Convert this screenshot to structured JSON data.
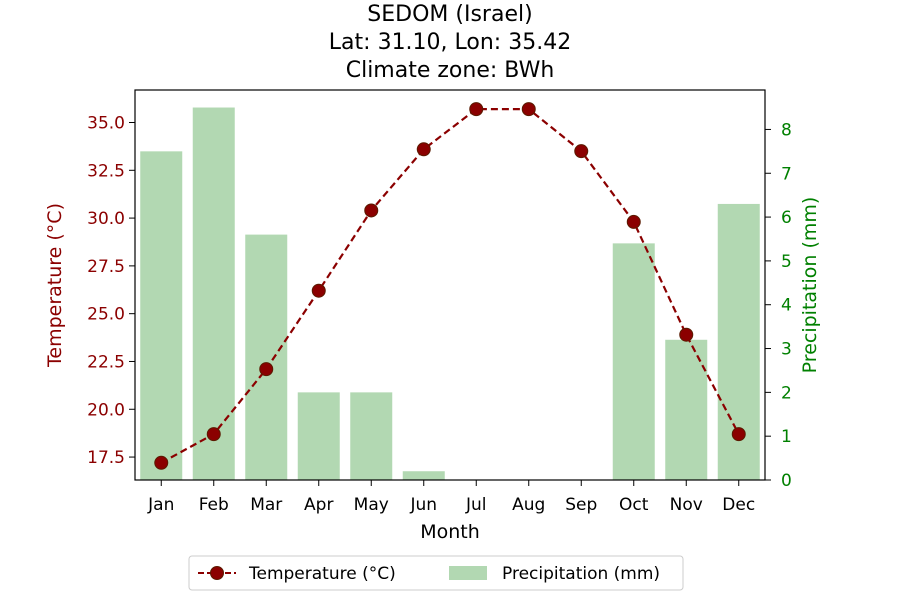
{
  "chart_data": {
    "type": "bar+line",
    "title_lines": [
      "SEDOM (Israel)",
      "Lat: 31.10, Lon: 35.42",
      "Climate zone: BWh"
    ],
    "xlabel": "Month",
    "ylabel_left": "Temperature (°C)",
    "ylabel_right": "Precipitation (mm)",
    "categories": [
      "Jan",
      "Feb",
      "Mar",
      "Apr",
      "May",
      "Jun",
      "Jul",
      "Aug",
      "Sep",
      "Oct",
      "Nov",
      "Dec"
    ],
    "y_left_lim": [
      16.3,
      36.7
    ],
    "y_left_ticks": [
      "17.5",
      "20.0",
      "22.5",
      "25.0",
      "27.5",
      "30.0",
      "32.5",
      "35.0"
    ],
    "y_right_lim": [
      0,
      8.9
    ],
    "y_right_ticks": [
      "0",
      "1",
      "2",
      "3",
      "4",
      "5",
      "6",
      "7",
      "8"
    ],
    "series": [
      {
        "name": "Temperature (°C)",
        "type": "line",
        "axis": "left",
        "values": [
          17.2,
          18.7,
          22.1,
          26.2,
          30.4,
          33.6,
          35.7,
          35.7,
          33.5,
          29.8,
          23.9,
          18.7
        ]
      },
      {
        "name": "Precipitation (mm)",
        "type": "bar",
        "axis": "right",
        "values": [
          7.5,
          8.5,
          5.6,
          2.0,
          2.0,
          0.2,
          0.0,
          0.0,
          0.0,
          5.4,
          3.2,
          6.3
        ]
      }
    ],
    "colors": {
      "temperature": "#8b0000",
      "precipitation": "#b2d8b2",
      "right_axis": "#008000",
      "marker_edge": "#5a1a00"
    },
    "legend_placement": "bottom-center",
    "grid": false
  }
}
